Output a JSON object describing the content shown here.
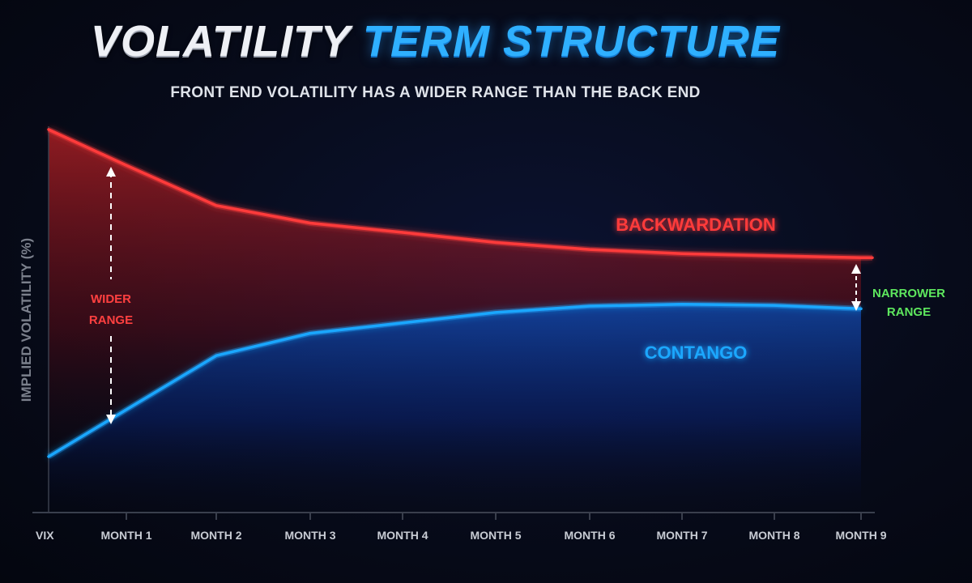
{
  "header": {
    "title_part1": "VOLATILITY",
    "title_part2": "TERM STRUCTURE",
    "subtitle": "FRONT END VOLATILITY HAS A WIDER RANGE THAN THE BACK END"
  },
  "colors": {
    "backwardation": "#ff3b3b",
    "contango": "#1aa7ff",
    "narrower_label": "#5ee85e",
    "wider_label": "#ff4040",
    "axis": "#3a3f4d",
    "tick_text": "#c8ccd4"
  },
  "chart_data": {
    "type": "line",
    "title": "VOLATILITY TERM STRUCTURE",
    "subtitle": "FRONT END VOLATILITY HAS A WIDER RANGE THAN THE BACK END",
    "xlabel": "",
    "ylabel": "IMPLIED VOLATILITY (%)",
    "categories": [
      "VIX",
      "MONTH 1",
      "MONTH 2",
      "MONTH 3",
      "MONTH 4",
      "MONTH 5",
      "MONTH 6",
      "MONTH 7",
      "MONTH 8",
      "MONTH 9"
    ],
    "ylim": [
      0,
      100
    ],
    "grid": false,
    "legend": "none",
    "series": [
      {
        "name": "BACKWARDATION",
        "values": [
          100,
          90.4,
          79.6,
          74.9,
          72.4,
          69.7,
          67.8,
          66.7,
          66.1,
          65.6
        ]
      },
      {
        "name": "CONTANGO",
        "values": [
          12.2,
          24.8,
          39.3,
          45.3,
          48.1,
          50.9,
          52.6,
          53.1,
          52.8,
          51.9
        ]
      }
    ],
    "annotations": [
      {
        "text_line1": "WIDER",
        "text_line2": "RANGE",
        "at": "MONTH 1",
        "type": "double-arrow"
      },
      {
        "text_line1": "NARROWER",
        "text_line2": "RANGE",
        "at": "MONTH 9",
        "type": "double-arrow"
      }
    ]
  }
}
